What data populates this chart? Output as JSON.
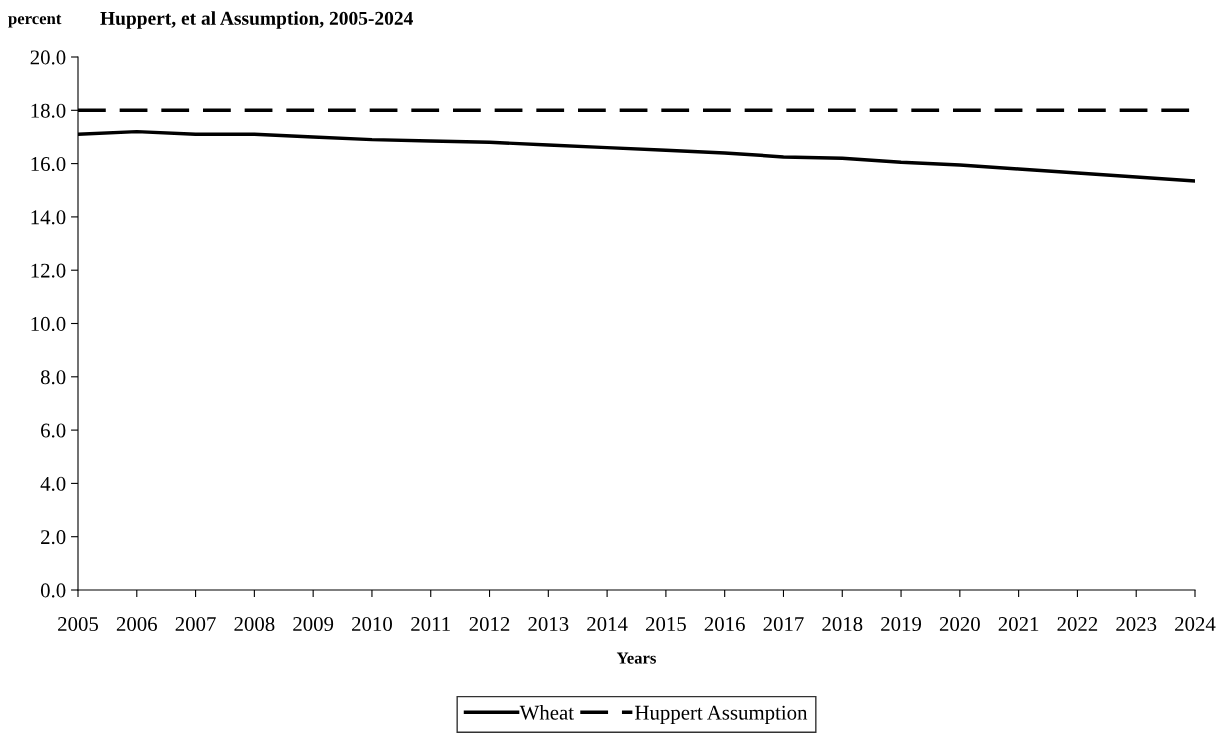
{
  "chart_data": {
    "type": "line",
    "title": "Huppert, et al Assumption, 2005-2024",
    "ylabel": "percent",
    "xlabel": "Years",
    "categories": [
      "2005",
      "2006",
      "2007",
      "2008",
      "2009",
      "2010",
      "2011",
      "2012",
      "2013",
      "2014",
      "2015",
      "2016",
      "2017",
      "2018",
      "2019",
      "2020",
      "2021",
      "2022",
      "2023",
      "2024"
    ],
    "series": [
      {
        "name": "Wheat",
        "color": "#000000",
        "line_style": "solid",
        "values": [
          17.1,
          17.2,
          17.1,
          17.1,
          17.0,
          16.9,
          16.85,
          16.8,
          16.7,
          16.6,
          16.5,
          16.4,
          16.25,
          16.2,
          16.05,
          15.95,
          15.8,
          15.65,
          15.5,
          15.35
        ]
      },
      {
        "name": "Huppert Assumption",
        "color": "#000000",
        "line_style": "dashed",
        "values": [
          18,
          18,
          18,
          18,
          18,
          18,
          18,
          18,
          18,
          18,
          18,
          18,
          18,
          18,
          18,
          18,
          18,
          18,
          18,
          18
        ]
      }
    ],
    "ylim": [
      0,
      20
    ],
    "yticks": [
      {
        "value": 0,
        "label": "0.0"
      },
      {
        "value": 2,
        "label": "2.0"
      },
      {
        "value": 4,
        "label": "4.0"
      },
      {
        "value": 6,
        "label": "6.0"
      },
      {
        "value": 8,
        "label": "8.0"
      },
      {
        "value": 10,
        "label": "10.0"
      },
      {
        "value": 12,
        "label": "12.0"
      },
      {
        "value": 14,
        "label": "14.0"
      },
      {
        "value": 16,
        "label": "16.0"
      },
      {
        "value": 18,
        "label": "18.0"
      },
      {
        "value": 20,
        "label": "20.0"
      }
    ],
    "grid": false,
    "legend": "bottom",
    "marker": "none"
  }
}
